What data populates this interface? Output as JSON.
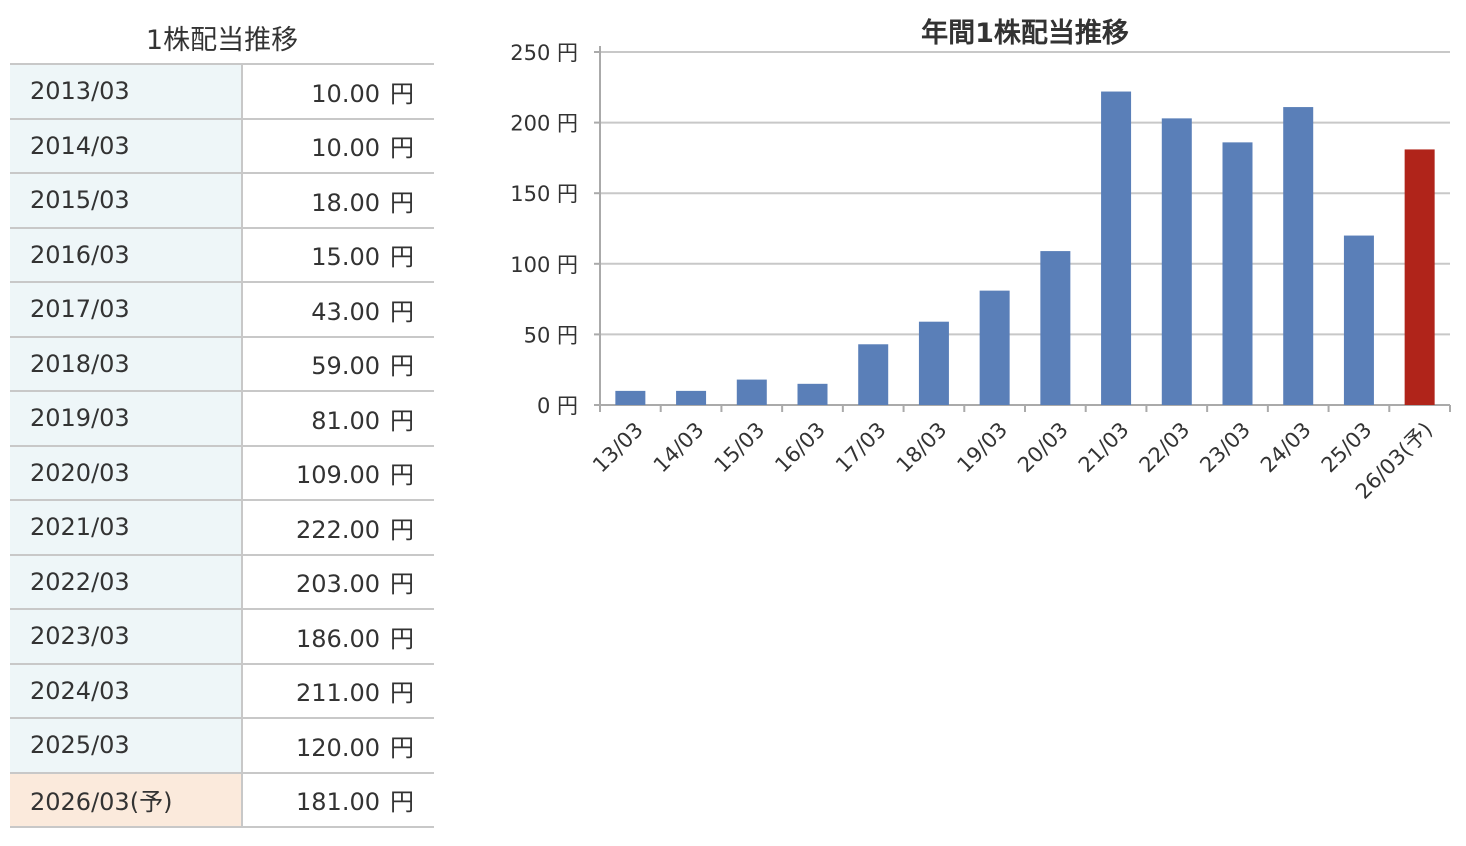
{
  "table": {
    "title": "1株配当推移",
    "unit": "円",
    "rows": [
      {
        "period": "2013/03",
        "amount": "10.00",
        "forecast": false
      },
      {
        "period": "2014/03",
        "amount": "10.00",
        "forecast": false
      },
      {
        "period": "2015/03",
        "amount": "18.00",
        "forecast": false
      },
      {
        "period": "2016/03",
        "amount": "15.00",
        "forecast": false
      },
      {
        "period": "2017/03",
        "amount": "43.00",
        "forecast": false
      },
      {
        "period": "2018/03",
        "amount": "59.00",
        "forecast": false
      },
      {
        "period": "2019/03",
        "amount": "81.00",
        "forecast": false
      },
      {
        "period": "2020/03",
        "amount": "109.00",
        "forecast": false
      },
      {
        "period": "2021/03",
        "amount": "222.00",
        "forecast": false
      },
      {
        "period": "2022/03",
        "amount": "203.00",
        "forecast": false
      },
      {
        "period": "2023/03",
        "amount": "186.00",
        "forecast": false
      },
      {
        "period": "2024/03",
        "amount": "211.00",
        "forecast": false
      },
      {
        "period": "2025/03",
        "amount": "120.00",
        "forecast": false
      },
      {
        "period": "2026/03(予)",
        "amount": "181.00",
        "forecast": true
      }
    ],
    "colors": {
      "period_bg": "#eef6f8",
      "forecast_bg": "#fbeadc",
      "border": "#c8c8c8"
    }
  },
  "chart_data": {
    "type": "bar",
    "title": "年間1株配当推移",
    "categories": [
      "13/03",
      "14/03",
      "15/03",
      "16/03",
      "17/03",
      "18/03",
      "19/03",
      "20/03",
      "21/03",
      "22/03",
      "23/03",
      "24/03",
      "25/03",
      "26/03(予)"
    ],
    "values": [
      10,
      10,
      18,
      15,
      43,
      59,
      81,
      109,
      222,
      203,
      186,
      211,
      120,
      181
    ],
    "forecast_flags": [
      false,
      false,
      false,
      false,
      false,
      false,
      false,
      false,
      false,
      false,
      false,
      false,
      false,
      true
    ],
    "ylim": [
      0,
      250
    ],
    "yticks": [
      0,
      50,
      100,
      150,
      200,
      250
    ],
    "y_unit": "円",
    "grid": true,
    "colors": {
      "actual": "#5a7fb8",
      "forecast": "#b0241a",
      "grid": "#c8c8c8",
      "axis": "#aaaaaa"
    }
  }
}
